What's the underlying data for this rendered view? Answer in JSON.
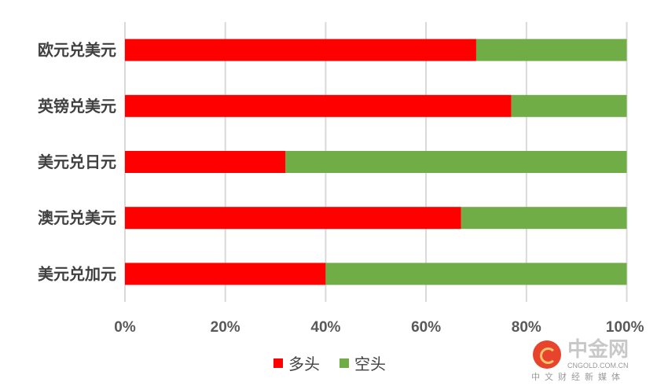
{
  "chart_data": {
    "type": "bar",
    "orientation": "horizontal",
    "stacked": "percent",
    "categories": [
      "欧元兑美元",
      "英镑兑美元",
      "美元兑日元",
      "澳元兑美元",
      "美元兑加元"
    ],
    "series": [
      {
        "name": "多头",
        "color": "#FF0000",
        "values": [
          70,
          77,
          32,
          67,
          40
        ]
      },
      {
        "name": "空头",
        "color": "#70AD47",
        "values": [
          30,
          23,
          68,
          33,
          60
        ]
      }
    ],
    "xlim": [
      0,
      100
    ],
    "xticks": [
      "0%",
      "20%",
      "40%",
      "60%",
      "80%",
      "100%"
    ],
    "grid": true,
    "legend": "bottom",
    "title": "",
    "xlabel": "",
    "ylabel": ""
  },
  "watermark": {
    "name": "中金网",
    "domain": "CNGOLD.COM.CN",
    "slogan": "中文财经新媒体"
  }
}
